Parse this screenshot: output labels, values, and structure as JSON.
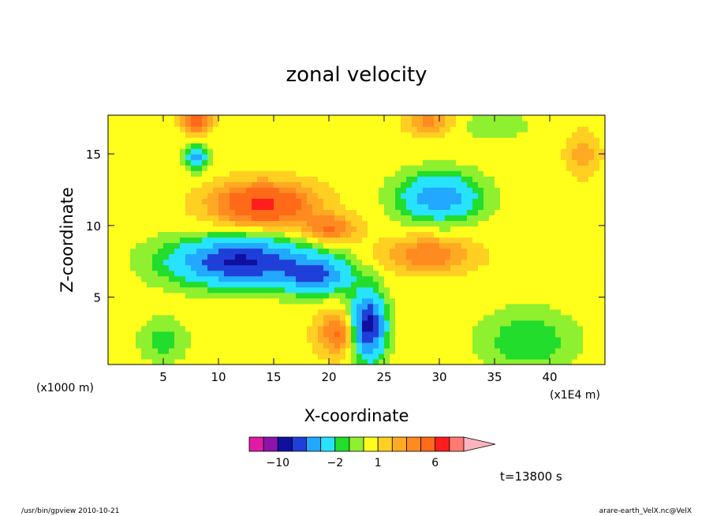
{
  "chart_data": {
    "type": "heatmap",
    "title": "zonal velocity",
    "xlabel": "X-coordinate",
    "ylabel": "Z-coordinate",
    "x_unit": "(x1E4 m)",
    "y_unit": "(x1000 m)",
    "xlim": [
      0,
      45
    ],
    "ylim": [
      0.3,
      17.7
    ],
    "x_ticks": [
      5,
      10,
      15,
      20,
      25,
      30,
      35,
      40
    ],
    "x_tick_labels": [
      "5",
      "10",
      "15",
      "20",
      "25",
      "30",
      "35",
      "40"
    ],
    "y_ticks": [
      5,
      10,
      15
    ],
    "y_tick_labels": [
      "5",
      "10",
      "15"
    ],
    "time_label": "t=13800 s",
    "colorbar": {
      "levels": [
        -14,
        -12,
        -10,
        -8,
        -6,
        -4,
        -2,
        -1,
        0,
        1,
        2,
        3,
        4,
        6,
        8,
        10,
        12
      ],
      "colors": [
        "#e01ca6",
        "#8c14ad",
        "#0f0fa0",
        "#1f3fd9",
        "#22a8ff",
        "#27e3ff",
        "#22dd2b",
        "#8ff02f",
        "#ffff1b",
        "#ffcf22",
        "#ffaa22",
        "#ff8a20",
        "#ff6a18",
        "#ff1d1d",
        "#ff7a70"
      ],
      "extend_color": "#ffb4bd",
      "tick_labels": [
        {
          "level": -10,
          "label": "−10"
        },
        {
          "level": -2,
          "label": "−2"
        },
        {
          "level": 1,
          "label": "1"
        },
        {
          "level": 6,
          "label": "6"
        }
      ]
    },
    "features": [
      {
        "x": 12,
        "z": 7.5,
        "sx": 6,
        "sz": 1.6,
        "amp": -9
      },
      {
        "x": 19,
        "z": 6.5,
        "sx": 3,
        "sz": 1.2,
        "amp": -6
      },
      {
        "x": 23.5,
        "z": 3,
        "sx": 1.5,
        "sz": 2.2,
        "amp": -10
      },
      {
        "x": 30,
        "z": 12,
        "sx": 3.5,
        "sz": 1.6,
        "amp": -6
      },
      {
        "x": 8,
        "z": 14.8,
        "sx": 1,
        "sz": 0.9,
        "amp": -5
      },
      {
        "x": 14,
        "z": 11.5,
        "sx": 4.5,
        "sz": 1.5,
        "amp": 6
      },
      {
        "x": 20,
        "z": 9.8,
        "sx": 2.5,
        "sz": 1,
        "amp": 3.5
      },
      {
        "x": 29,
        "z": 8,
        "sx": 4,
        "sz": 1.2,
        "amp": 3.5
      },
      {
        "x": 21,
        "z": 2.5,
        "sx": 2,
        "sz": 1.5,
        "amp": 4
      },
      {
        "x": 8,
        "z": 17.3,
        "sx": 1.3,
        "sz": 0.9,
        "amp": 4
      },
      {
        "x": 29,
        "z": 17.3,
        "sx": 2,
        "sz": 0.9,
        "amp": 3
      },
      {
        "x": 43,
        "z": 15,
        "sx": 1.5,
        "sz": 1.5,
        "amp": 2
      },
      {
        "x": 5,
        "z": 2,
        "sx": 2,
        "sz": 1.5,
        "amp": -2
      },
      {
        "x": 38,
        "z": 2,
        "sx": 4,
        "sz": 2,
        "amp": -2.5
      },
      {
        "x": 35,
        "z": 17,
        "sx": 3,
        "sz": 0.8,
        "amp": -1.5
      }
    ],
    "background": 0.5
  },
  "footer": {
    "left": "/usr/bin/gpview   2010-10-21",
    "right": "arare-earth_VelX.nc@VelX"
  }
}
